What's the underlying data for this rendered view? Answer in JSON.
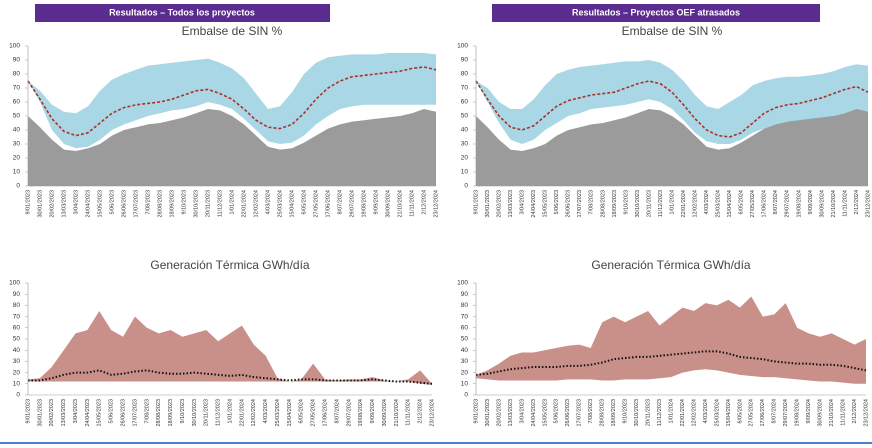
{
  "banners": [
    "Resultados – Todos los proyectos",
    "Resultados – Proyectos OEF atrasados"
  ],
  "chart_data": [
    {
      "type": "area",
      "title": "Embalse de SIN %",
      "categories": [
        "9/01/2023",
        "30/01/2023",
        "20/02/2023",
        "13/03/2023",
        "3/04/2023",
        "24/04/2023",
        "15/05/2023",
        "5/06/2023",
        "26/06/2023",
        "17/07/2023",
        "7/08/2023",
        "28/08/2023",
        "18/09/2023",
        "9/10/2023",
        "30/10/2023",
        "20/11/2023",
        "11/12/2023",
        "1/01/2024",
        "22/01/2024",
        "12/02/2024",
        "4/03/2024",
        "25/03/2024",
        "15/04/2024",
        "6/05/2024",
        "27/05/2024",
        "17/06/2024",
        "8/07/2024",
        "29/07/2024",
        "19/08/2024",
        "9/09/2024",
        "30/09/2024",
        "21/10/2024",
        "11/11/2024",
        "2/12/2024",
        "23/12/2024"
      ],
      "ylim": [
        0,
        100
      ],
      "yticks": [
        0,
        10,
        20,
        30,
        40,
        50,
        60,
        70,
        80,
        90,
        100
      ],
      "grid": false,
      "series": [
        {
          "kind": "band",
          "color": "#aad7e6",
          "values": [
            75,
            68,
            58,
            53,
            52,
            57,
            68,
            76,
            80,
            83,
            86,
            87,
            88,
            89,
            90,
            91,
            88,
            84,
            77,
            66,
            55,
            57,
            67,
            80,
            88,
            92,
            93,
            94,
            94,
            94,
            95,
            95,
            95,
            95,
            94
          ],
          "lower": [
            75,
            60,
            40,
            30,
            27,
            28,
            33,
            40,
            44,
            47,
            50,
            52,
            54,
            55,
            57,
            60,
            58,
            55,
            48,
            40,
            32,
            30,
            31,
            36,
            44,
            50,
            55,
            57,
            58,
            58,
            58,
            58,
            58,
            58,
            58
          ]
        },
        {
          "kind": "area",
          "color": "#9b9b9b",
          "values": [
            50,
            42,
            33,
            26,
            25,
            27,
            30,
            36,
            40,
            42,
            44,
            45,
            47,
            49,
            52,
            55,
            54,
            50,
            44,
            36,
            28,
            26,
            27,
            31,
            36,
            41,
            44,
            46,
            47,
            48,
            49,
            50,
            52,
            55,
            53
          ]
        },
        {
          "kind": "line",
          "dash": "dashed",
          "color": "#a8322b",
          "values": [
            75,
            62,
            48,
            39,
            36,
            38,
            45,
            52,
            56,
            58,
            59,
            60,
            62,
            65,
            68,
            69,
            66,
            62,
            55,
            47,
            42,
            41,
            44,
            52,
            62,
            70,
            75,
            78,
            79,
            80,
            81,
            82,
            84,
            85,
            83
          ]
        }
      ]
    },
    {
      "type": "area",
      "title": "Embalse de SIN %",
      "categories": [
        "9/01/2023",
        "30/01/2023",
        "20/02/2023",
        "13/03/2023",
        "3/04/2023",
        "24/04/2023",
        "15/05/2023",
        "5/06/2023",
        "26/06/2023",
        "17/07/2023",
        "7/08/2023",
        "28/08/2023",
        "18/09/2023",
        "9/10/2023",
        "30/10/2023",
        "20/11/2023",
        "11/12/2023",
        "1/01/2024",
        "22/01/2024",
        "12/02/2024",
        "4/03/2024",
        "25/03/2024",
        "15/04/2024",
        "6/05/2024",
        "27/05/2024",
        "17/06/2024",
        "8/07/2024",
        "29/07/2024",
        "19/08/2024",
        "9/09/2024",
        "30/09/2024",
        "21/10/2024",
        "11/11/2024",
        "2/12/2024",
        "23/12/2024"
      ],
      "ylim": [
        0,
        100
      ],
      "yticks": [
        0,
        10,
        20,
        30,
        40,
        50,
        60,
        70,
        80,
        90,
        100
      ],
      "grid": false,
      "series": [
        {
          "kind": "band",
          "color": "#aad7e6",
          "values": [
            75,
            70,
            60,
            55,
            55,
            62,
            72,
            80,
            83,
            85,
            86,
            87,
            88,
            89,
            89,
            90,
            88,
            83,
            75,
            65,
            57,
            55,
            60,
            65,
            72,
            75,
            77,
            78,
            78,
            79,
            80,
            82,
            85,
            87,
            86
          ],
          "lower": [
            75,
            60,
            45,
            33,
            30,
            33,
            40,
            45,
            50,
            52,
            55,
            56,
            57,
            58,
            60,
            62,
            60,
            55,
            47,
            38,
            32,
            30,
            30,
            33,
            38,
            41,
            44,
            46,
            46,
            47,
            48,
            50,
            52,
            53,
            52
          ]
        },
        {
          "kind": "area",
          "color": "#9b9b9b",
          "values": [
            50,
            42,
            33,
            26,
            25,
            27,
            30,
            36,
            40,
            42,
            44,
            45,
            47,
            49,
            52,
            55,
            54,
            50,
            44,
            36,
            28,
            26,
            27,
            31,
            36,
            41,
            44,
            46,
            47,
            48,
            49,
            50,
            52,
            55,
            53
          ]
        },
        {
          "kind": "line",
          "dash": "dashed",
          "color": "#a8322b",
          "values": [
            75,
            62,
            50,
            42,
            40,
            43,
            50,
            57,
            61,
            63,
            65,
            66,
            67,
            70,
            73,
            75,
            73,
            67,
            58,
            48,
            40,
            36,
            35,
            38,
            45,
            52,
            56,
            58,
            59,
            61,
            63,
            66,
            69,
            71,
            67
          ]
        }
      ]
    },
    {
      "type": "area",
      "title": "Generación Térmica GWh/día",
      "categories": [
        "9/01/2023",
        "30/01/2023",
        "20/02/2023",
        "13/03/2023",
        "3/04/2023",
        "24/04/2023",
        "15/05/2023",
        "5/06/2023",
        "26/06/2023",
        "17/07/2023",
        "7/08/2023",
        "28/08/2023",
        "18/09/2023",
        "9/10/2023",
        "30/10/2023",
        "20/11/2023",
        "11/12/2023",
        "1/01/2024",
        "22/01/2024",
        "12/02/2024",
        "4/03/2024",
        "25/03/2024",
        "15/04/2024",
        "6/05/2024",
        "27/05/2024",
        "17/06/2024",
        "8/07/2024",
        "29/07/2024",
        "19/08/2024",
        "9/09/2024",
        "30/09/2024",
        "21/10/2024",
        "11/11/2024",
        "2/12/2024",
        "23/12/2024"
      ],
      "ylim": [
        0,
        100
      ],
      "yticks": [
        0,
        10,
        20,
        30,
        40,
        50,
        60,
        70,
        80,
        90,
        100
      ],
      "grid": false,
      "series": [
        {
          "kind": "band",
          "color": "#c98f89",
          "values": [
            14,
            15,
            25,
            40,
            55,
            58,
            75,
            58,
            52,
            70,
            60,
            55,
            58,
            52,
            55,
            58,
            48,
            55,
            62,
            45,
            35,
            15,
            12,
            14,
            28,
            14,
            13,
            14,
            14,
            16,
            13,
            12,
            14,
            22,
            10
          ],
          "lower": [
            12,
            12,
            12,
            12,
            12,
            12,
            12,
            12,
            12,
            12,
            12,
            12,
            12,
            12,
            12,
            12,
            12,
            12,
            12,
            12,
            12,
            12,
            12,
            12,
            12,
            12,
            12,
            12,
            12,
            12,
            12,
            12,
            12,
            10,
            9
          ]
        },
        {
          "kind": "line",
          "dash": "dotted",
          "color": "#111111",
          "values": [
            13,
            13,
            15,
            18,
            20,
            20,
            22,
            18,
            19,
            21,
            22,
            20,
            19,
            19,
            20,
            19,
            18,
            17,
            18,
            16,
            15,
            14,
            13,
            14,
            14,
            13,
            13,
            13,
            13,
            14,
            13,
            12,
            12,
            11,
            10
          ]
        }
      ]
    },
    {
      "type": "area",
      "title": "Generación Térmica GWh/día",
      "categories": [
        "9/01/2023",
        "30/01/2023",
        "20/02/2023",
        "13/03/2023",
        "3/04/2023",
        "24/04/2023",
        "15/05/2023",
        "5/06/2023",
        "26/06/2023",
        "17/07/2023",
        "7/08/2023",
        "28/08/2023",
        "18/09/2023",
        "9/10/2023",
        "30/10/2023",
        "20/11/2023",
        "11/12/2023",
        "1/01/2024",
        "22/01/2024",
        "12/02/2024",
        "4/03/2024",
        "25/03/2024",
        "15/04/2024",
        "6/05/2024",
        "27/05/2024",
        "17/06/2024",
        "8/07/2024",
        "29/07/2024",
        "19/08/2024",
        "9/09/2024",
        "30/09/2024",
        "21/10/2024",
        "11/11/2024",
        "2/12/2024",
        "23/12/2024"
      ],
      "ylim": [
        0,
        100
      ],
      "yticks": [
        0,
        10,
        20,
        30,
        40,
        50,
        60,
        70,
        80,
        90,
        100
      ],
      "grid": false,
      "series": [
        {
          "kind": "band",
          "color": "#c98f89",
          "values": [
            18,
            22,
            28,
            35,
            38,
            38,
            40,
            42,
            44,
            45,
            42,
            65,
            70,
            65,
            70,
            75,
            62,
            70,
            78,
            75,
            82,
            80,
            85,
            78,
            88,
            70,
            72,
            82,
            60,
            55,
            52,
            55,
            50,
            45,
            50
          ],
          "lower": [
            15,
            14,
            13,
            13,
            13,
            13,
            13,
            13,
            14,
            14,
            14,
            13,
            13,
            14,
            14,
            14,
            15,
            16,
            20,
            22,
            23,
            22,
            20,
            18,
            17,
            16,
            16,
            15,
            14,
            13,
            12,
            12,
            11,
            10,
            10
          ]
        },
        {
          "kind": "line",
          "dash": "dotted",
          "color": "#111111",
          "values": [
            18,
            19,
            21,
            23,
            24,
            25,
            25,
            25,
            26,
            26,
            27,
            29,
            32,
            33,
            34,
            34,
            35,
            36,
            37,
            38,
            39,
            39,
            37,
            34,
            33,
            32,
            30,
            29,
            28,
            28,
            27,
            27,
            26,
            24,
            22
          ]
        }
      ]
    }
  ]
}
